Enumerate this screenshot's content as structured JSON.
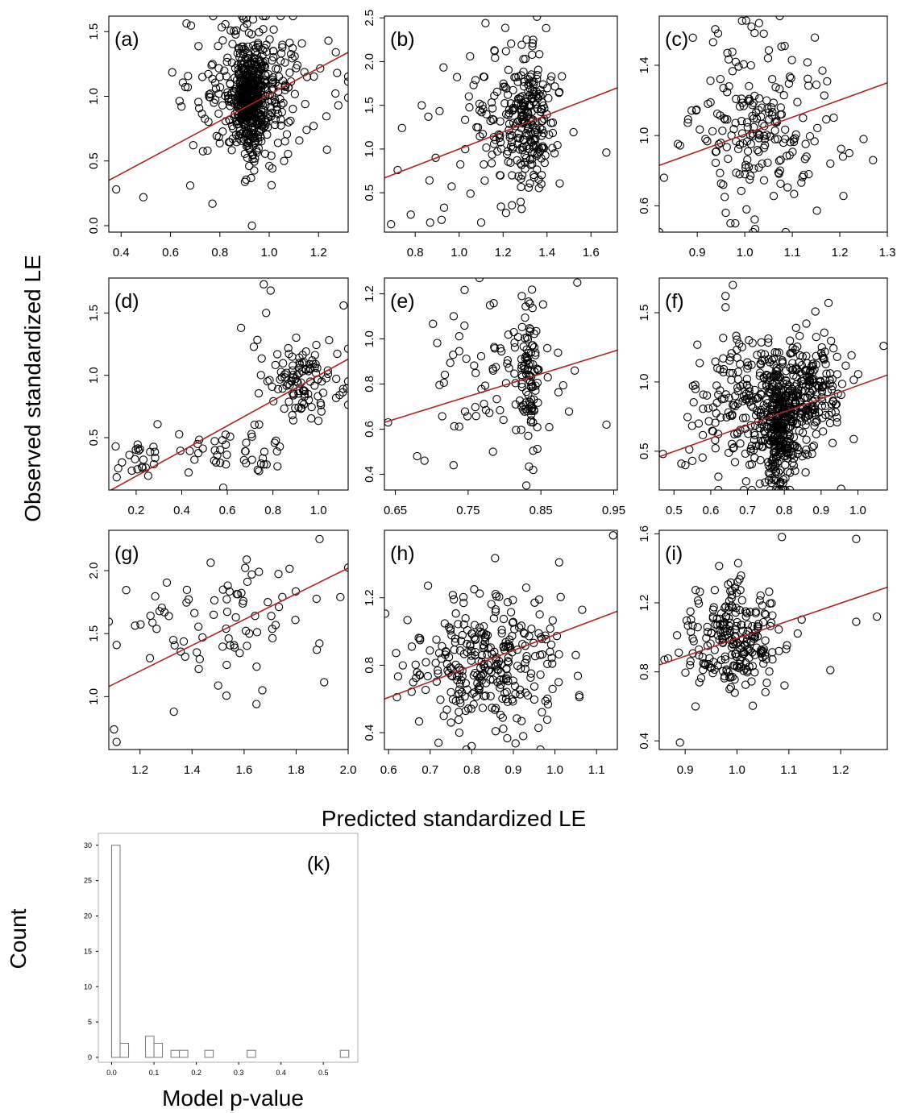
{
  "figure": {
    "ylabel": "Observed standardized LE",
    "xlabel": "Predicted standardized LE"
  },
  "chart_data": [
    {
      "type": "scatter",
      "id": "a",
      "label": "(a)",
      "xlim": [
        0.35,
        1.32
      ],
      "ylim": [
        -0.05,
        1.62
      ],
      "xticks": [
        0.4,
        0.6,
        0.8,
        1.0,
        1.2
      ],
      "xtick_labels": [
        "0.4",
        "0.6",
        "0.8",
        "1.0",
        "1.2"
      ],
      "yticks": [
        0.0,
        0.5,
        1.0,
        1.5
      ],
      "ytick_labels": [
        "0.0",
        "0.5",
        "1.0",
        "1.5"
      ],
      "fit": {
        "x": [
          0.35,
          1.32
        ],
        "y": [
          0.35,
          1.34
        ]
      },
      "cloud": [
        {
          "cx": 0.92,
          "cy": 0.98,
          "sx": 0.035,
          "sy": 0.2,
          "n": 380
        },
        {
          "cx": 0.95,
          "cy": 1.05,
          "sx": 0.13,
          "sy": 0.26,
          "n": 260
        }
      ],
      "outliers": [
        [
          0.38,
          0.28
        ],
        [
          0.49,
          0.22
        ],
        [
          0.67,
          1.07
        ],
        [
          0.68,
          0.31
        ],
        [
          1.28,
          0.93
        ],
        [
          1.27,
          1.34
        ],
        [
          1.24,
          1.43
        ],
        [
          0.91,
          1.56
        ],
        [
          0.93,
          0.0
        ],
        [
          0.75,
          0.58
        ],
        [
          0.77,
          0.17
        ]
      ]
    },
    {
      "type": "scatter",
      "id": "b",
      "label": "(b)",
      "xlim": [
        0.66,
        1.72
      ],
      "ylim": [
        0.05,
        2.52
      ],
      "xticks": [
        0.8,
        1.0,
        1.2,
        1.4,
        1.6
      ],
      "xtick_labels": [
        "0.8",
        "1.0",
        "1.2",
        "1.4",
        "1.6"
      ],
      "yticks": [
        0.5,
        1.0,
        1.5,
        2.0,
        2.5
      ],
      "ytick_labels": [
        "0.5",
        "1.0",
        "1.5",
        "2.0",
        "2.5"
      ],
      "fit": {
        "x": [
          0.66,
          1.72
        ],
        "y": [
          0.67,
          1.7
        ]
      },
      "cloud": [
        {
          "cx": 1.33,
          "cy": 1.32,
          "sx": 0.055,
          "sy": 0.38,
          "n": 180
        },
        {
          "cx": 1.2,
          "cy": 1.3,
          "sx": 0.14,
          "sy": 0.45,
          "n": 110
        }
      ],
      "outliers": [
        [
          0.69,
          0.14
        ],
        [
          0.72,
          0.76
        ],
        [
          0.74,
          1.24
        ],
        [
          0.83,
          1.5
        ],
        [
          1.12,
          2.44
        ],
        [
          1.05,
          2.06
        ],
        [
          1.67,
          0.96
        ],
        [
          0.92,
          0.19
        ],
        [
          0.78,
          0.25
        ],
        [
          0.86,
          1.37
        ],
        [
          1.1,
          0.16
        ]
      ]
    },
    {
      "type": "scatter",
      "id": "c",
      "label": "(c)",
      "xlim": [
        0.82,
        1.3
      ],
      "ylim": [
        0.45,
        1.68
      ],
      "xticks": [
        0.9,
        1.0,
        1.1,
        1.2,
        1.3
      ],
      "xtick_labels": [
        "0.9",
        "1.0",
        "1.1",
        "1.2",
        "1.3"
      ],
      "yticks": [
        0.6,
        1.0,
        1.4
      ],
      "ytick_labels": [
        "0.6",
        "1.0",
        "1.4"
      ],
      "fit": {
        "x": [
          0.82,
          1.3
        ],
        "y": [
          0.83,
          1.3
        ]
      },
      "cloud": [
        {
          "cx": 1.03,
          "cy": 1.06,
          "sx": 0.07,
          "sy": 0.24,
          "n": 200
        }
      ],
      "outliers": [
        [
          0.83,
          0.76
        ],
        [
          1.27,
          0.86
        ],
        [
          1.25,
          0.98
        ],
        [
          1.03,
          1.64
        ],
        [
          1.04,
          1.58
        ],
        [
          0.98,
          0.5
        ],
        [
          0.97,
          0.5
        ],
        [
          0.96,
          0.56
        ],
        [
          1.22,
          0.9
        ],
        [
          1.18,
          0.84
        ]
      ]
    },
    {
      "type": "scatter",
      "id": "d",
      "label": "(d)",
      "xlim": [
        0.08,
        1.13
      ],
      "ylim": [
        0.08,
        1.78
      ],
      "xticks": [
        0.2,
        0.4,
        0.6,
        0.8,
        1.0
      ],
      "xtick_labels": [
        "0.2",
        "0.4",
        "0.6",
        "0.8",
        "1.0"
      ],
      "yticks": [
        0.5,
        1.0,
        1.5
      ],
      "ytick_labels": [
        "0.5",
        "1.0",
        "1.5"
      ],
      "fit": {
        "x": [
          0.08,
          1.13
        ],
        "y": [
          0.07,
          1.13
        ]
      },
      "cloud": [
        {
          "cx": 0.93,
          "cy": 0.95,
          "sx": 0.09,
          "sy": 0.16,
          "n": 110
        },
        {
          "cx": 0.62,
          "cy": 0.4,
          "sx": 0.12,
          "sy": 0.12,
          "n": 45
        },
        {
          "cx": 0.24,
          "cy": 0.3,
          "sx": 0.05,
          "sy": 0.07,
          "n": 22
        }
      ],
      "outliers": [
        [
          0.11,
          0.43
        ],
        [
          0.76,
          1.73
        ],
        [
          0.79,
          1.68
        ],
        [
          1.11,
          1.56
        ],
        [
          0.82,
          0.27
        ],
        [
          0.43,
          0.22
        ],
        [
          0.77,
          1.5
        ],
        [
          0.66,
          1.38
        ]
      ]
    },
    {
      "type": "scatter",
      "id": "e",
      "label": "(e)",
      "xlim": [
        0.635,
        0.955
      ],
      "ylim": [
        0.33,
        1.27
      ],
      "xticks": [
        0.65,
        0.75,
        0.85,
        0.95
      ],
      "xtick_labels": [
        "0.65",
        "0.75",
        "0.85",
        "0.95"
      ],
      "yticks": [
        0.4,
        0.6,
        0.8,
        1.0,
        1.2
      ],
      "ytick_labels": [
        "0.4",
        "0.6",
        "0.8",
        "1.0",
        "1.2"
      ],
      "fit": {
        "x": [
          0.635,
          0.955
        ],
        "y": [
          0.63,
          0.95
        ]
      },
      "cloud": [
        {
          "cx": 0.833,
          "cy": 0.82,
          "sx": 0.008,
          "sy": 0.17,
          "n": 90
        },
        {
          "cx": 0.8,
          "cy": 0.85,
          "sx": 0.04,
          "sy": 0.17,
          "n": 70
        }
      ],
      "outliers": [
        [
          0.64,
          0.63
        ],
        [
          0.94,
          0.62
        ],
        [
          0.9,
          1.25
        ],
        [
          0.83,
          0.35
        ],
        [
          0.68,
          0.48
        ],
        [
          0.69,
          0.46
        ],
        [
          0.73,
          0.44
        ]
      ]
    },
    {
      "type": "scatter",
      "id": "f",
      "label": "(f)",
      "xlim": [
        0.46,
        1.08
      ],
      "ylim": [
        0.22,
        1.75
      ],
      "xticks": [
        0.5,
        0.6,
        0.7,
        0.8,
        0.9,
        1.0
      ],
      "xtick_labels": [
        "0.5",
        "0.6",
        "0.7",
        "0.8",
        "0.9",
        "1.0"
      ],
      "yticks": [
        0.5,
        1.0,
        1.5
      ],
      "ytick_labels": [
        "0.5",
        "1.0",
        "1.5"
      ],
      "fit": {
        "x": [
          0.46,
          1.08
        ],
        "y": [
          0.46,
          1.05
        ]
      },
      "cloud": [
        {
          "cx": 0.79,
          "cy": 0.62,
          "sx": 0.02,
          "sy": 0.22,
          "n": 220
        },
        {
          "cx": 0.86,
          "cy": 0.95,
          "sx": 0.05,
          "sy": 0.2,
          "n": 220
        },
        {
          "cx": 0.72,
          "cy": 0.8,
          "sx": 0.08,
          "sy": 0.25,
          "n": 260
        }
      ],
      "outliers": [
        [
          0.47,
          0.48
        ],
        [
          0.64,
          1.62
        ],
        [
          0.66,
          1.7
        ],
        [
          0.92,
          1.57
        ],
        [
          1.07,
          1.26
        ],
        [
          0.79,
          0.27
        ],
        [
          0.55,
          0.43
        ],
        [
          0.52,
          0.41
        ]
      ]
    },
    {
      "type": "scatter",
      "id": "g",
      "label": "(g)",
      "xlim": [
        1.08,
        2.0
      ],
      "ylim": [
        0.58,
        2.32
      ],
      "xticks": [
        1.2,
        1.4,
        1.6,
        1.8,
        2.0
      ],
      "xtick_labels": [
        "1.2",
        "1.4",
        "1.6",
        "1.8",
        "2.0"
      ],
      "yticks": [
        1.0,
        1.5,
        2.0
      ],
      "ytick_labels": [
        "1.0",
        "1.5",
        "2.0"
      ],
      "fit": {
        "x": [
          1.08,
          2.0
        ],
        "y": [
          1.08,
          2.02
        ]
      },
      "cloud": [
        {
          "cx": 1.52,
          "cy": 1.55,
          "sx": 0.18,
          "sy": 0.28,
          "n": 80
        }
      ],
      "outliers": [
        [
          1.1,
          0.74
        ],
        [
          1.11,
          0.64
        ],
        [
          1.89,
          2.25
        ],
        [
          1.97,
          1.79
        ],
        [
          1.67,
          1.05
        ],
        [
          1.33,
          0.88
        ],
        [
          1.11,
          1.41
        ]
      ]
    },
    {
      "type": "scatter",
      "id": "h",
      "label": "(h)",
      "xlim": [
        0.59,
        1.15
      ],
      "ylim": [
        0.3,
        1.6
      ],
      "xticks": [
        0.6,
        0.7,
        0.8,
        0.9,
        1.0,
        1.1
      ],
      "xtick_labels": [
        "0.6",
        "0.7",
        "0.8",
        "0.9",
        "1.0",
        "1.1"
      ],
      "yticks": [
        0.4,
        0.8,
        1.2
      ],
      "ytick_labels": [
        "0.4",
        "0.8",
        "1.2"
      ],
      "fit": {
        "x": [
          0.59,
          1.15
        ],
        "y": [
          0.6,
          1.12
        ]
      },
      "cloud": [
        {
          "cx": 0.83,
          "cy": 0.82,
          "sx": 0.09,
          "sy": 0.2,
          "n": 300
        }
      ],
      "outliers": [
        [
          1.14,
          1.57
        ],
        [
          1.01,
          1.41
        ],
        [
          0.72,
          0.34
        ],
        [
          0.62,
          0.61
        ],
        [
          1.05,
          0.86
        ],
        [
          0.77,
          0.4
        ]
      ]
    },
    {
      "type": "scatter",
      "id": "i",
      "label": "(i)",
      "xlim": [
        0.85,
        1.29
      ],
      "ylim": [
        0.35,
        1.62
      ],
      "xticks": [
        0.9,
        1.0,
        1.1,
        1.2
      ],
      "xtick_labels": [
        "0.9",
        "1.0",
        "1.1",
        "1.2"
      ],
      "yticks": [
        0.4,
        0.8,
        1.2,
        1.6
      ],
      "ytick_labels": [
        "0.4",
        "0.8",
        "1.2",
        "1.6"
      ],
      "fit": {
        "x": [
          0.85,
          1.29
        ],
        "y": [
          0.84,
          1.29
        ]
      },
      "cloud": [
        {
          "cx": 0.99,
          "cy": 1.0,
          "sx": 0.045,
          "sy": 0.15,
          "n": 240
        }
      ],
      "outliers": [
        [
          1.23,
          1.57
        ],
        [
          0.89,
          0.39
        ],
        [
          1.18,
          0.81
        ],
        [
          1.27,
          1.12
        ],
        [
          1.23,
          1.09
        ],
        [
          0.86,
          0.87
        ],
        [
          0.92,
          0.6
        ]
      ]
    },
    {
      "type": "bar",
      "id": "k",
      "label": "(k)",
      "xlabel": "Model p-value",
      "ylabel": "Count",
      "xlim": [
        -0.02,
        0.57
      ],
      "ylim": [
        0,
        31
      ],
      "xticks": [
        0.0,
        0.1,
        0.2,
        0.3,
        0.4,
        0.5
      ],
      "xtick_labels": [
        "0.0",
        "0.1",
        "0.2",
        "0.3",
        "0.4",
        "0.5"
      ],
      "yticks": [
        0,
        5,
        10,
        15,
        20,
        25,
        30
      ],
      "ytick_labels": [
        "0",
        "5",
        "10",
        "15",
        "20",
        "25",
        "30"
      ],
      "bin_width": 0.02,
      "bin_starts": [
        0.0,
        0.02,
        0.08,
        0.1,
        0.14,
        0.16,
        0.22,
        0.32,
        0.54
      ],
      "counts": [
        30,
        2,
        3,
        2,
        1,
        1,
        1,
        1,
        1
      ]
    }
  ]
}
